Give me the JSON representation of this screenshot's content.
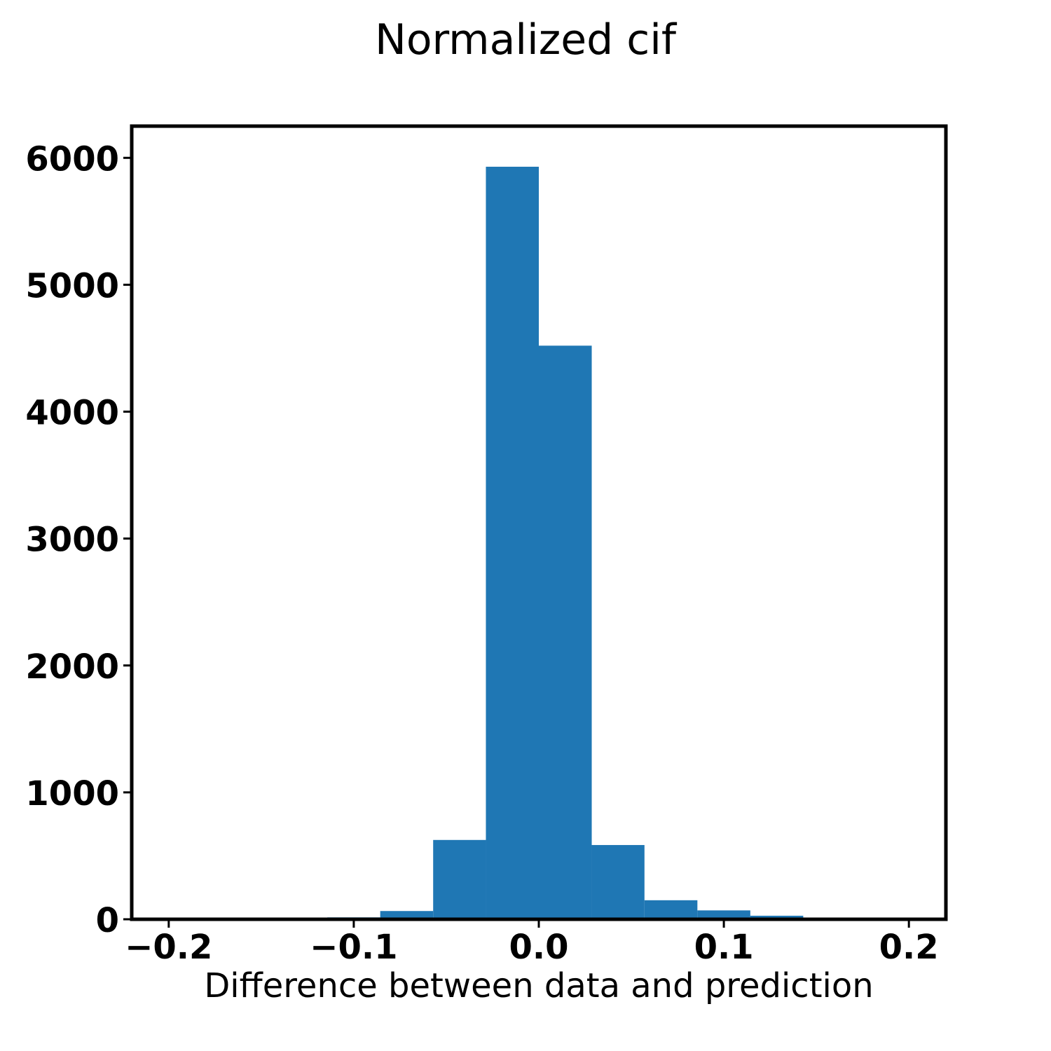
{
  "chart_data": {
    "type": "bar",
    "title": "Normalized cif",
    "xlabel": "Difference between data and prediction",
    "ylabel": "",
    "bar_color": "#1f77b4",
    "xlim": [
      -0.22,
      0.22
    ],
    "ylim": [
      0,
      6250
    ],
    "x_ticks": [
      -0.2,
      -0.1,
      0.0,
      0.1,
      0.2
    ],
    "x_tick_labels": [
      "−0.2",
      "−0.1",
      "0.0",
      "0.1",
      "0.2"
    ],
    "y_ticks": [
      0,
      1000,
      2000,
      3000,
      4000,
      5000,
      6000
    ],
    "y_tick_labels": [
      "0",
      "1000",
      "2000",
      "3000",
      "4000",
      "5000",
      "6000"
    ],
    "grid": false,
    "bins": [
      {
        "x0": -0.2,
        "x1": -0.1714,
        "value": 2
      },
      {
        "x0": -0.1714,
        "x1": -0.1429,
        "value": 3
      },
      {
        "x0": -0.1429,
        "x1": -0.1143,
        "value": 5
      },
      {
        "x0": -0.1143,
        "x1": -0.0857,
        "value": 15
      },
      {
        "x0": -0.0857,
        "x1": -0.0571,
        "value": 65
      },
      {
        "x0": -0.0571,
        "x1": -0.0286,
        "value": 625
      },
      {
        "x0": -0.0286,
        "x1": 0.0,
        "value": 5930
      },
      {
        "x0": 0.0,
        "x1": 0.0286,
        "value": 4520
      },
      {
        "x0": 0.0286,
        "x1": 0.0571,
        "value": 585
      },
      {
        "x0": 0.0571,
        "x1": 0.0857,
        "value": 150
      },
      {
        "x0": 0.0857,
        "x1": 0.1143,
        "value": 70
      },
      {
        "x0": 0.1143,
        "x1": 0.1429,
        "value": 28
      },
      {
        "x0": 0.1429,
        "x1": 0.1714,
        "value": 12
      }
    ]
  }
}
